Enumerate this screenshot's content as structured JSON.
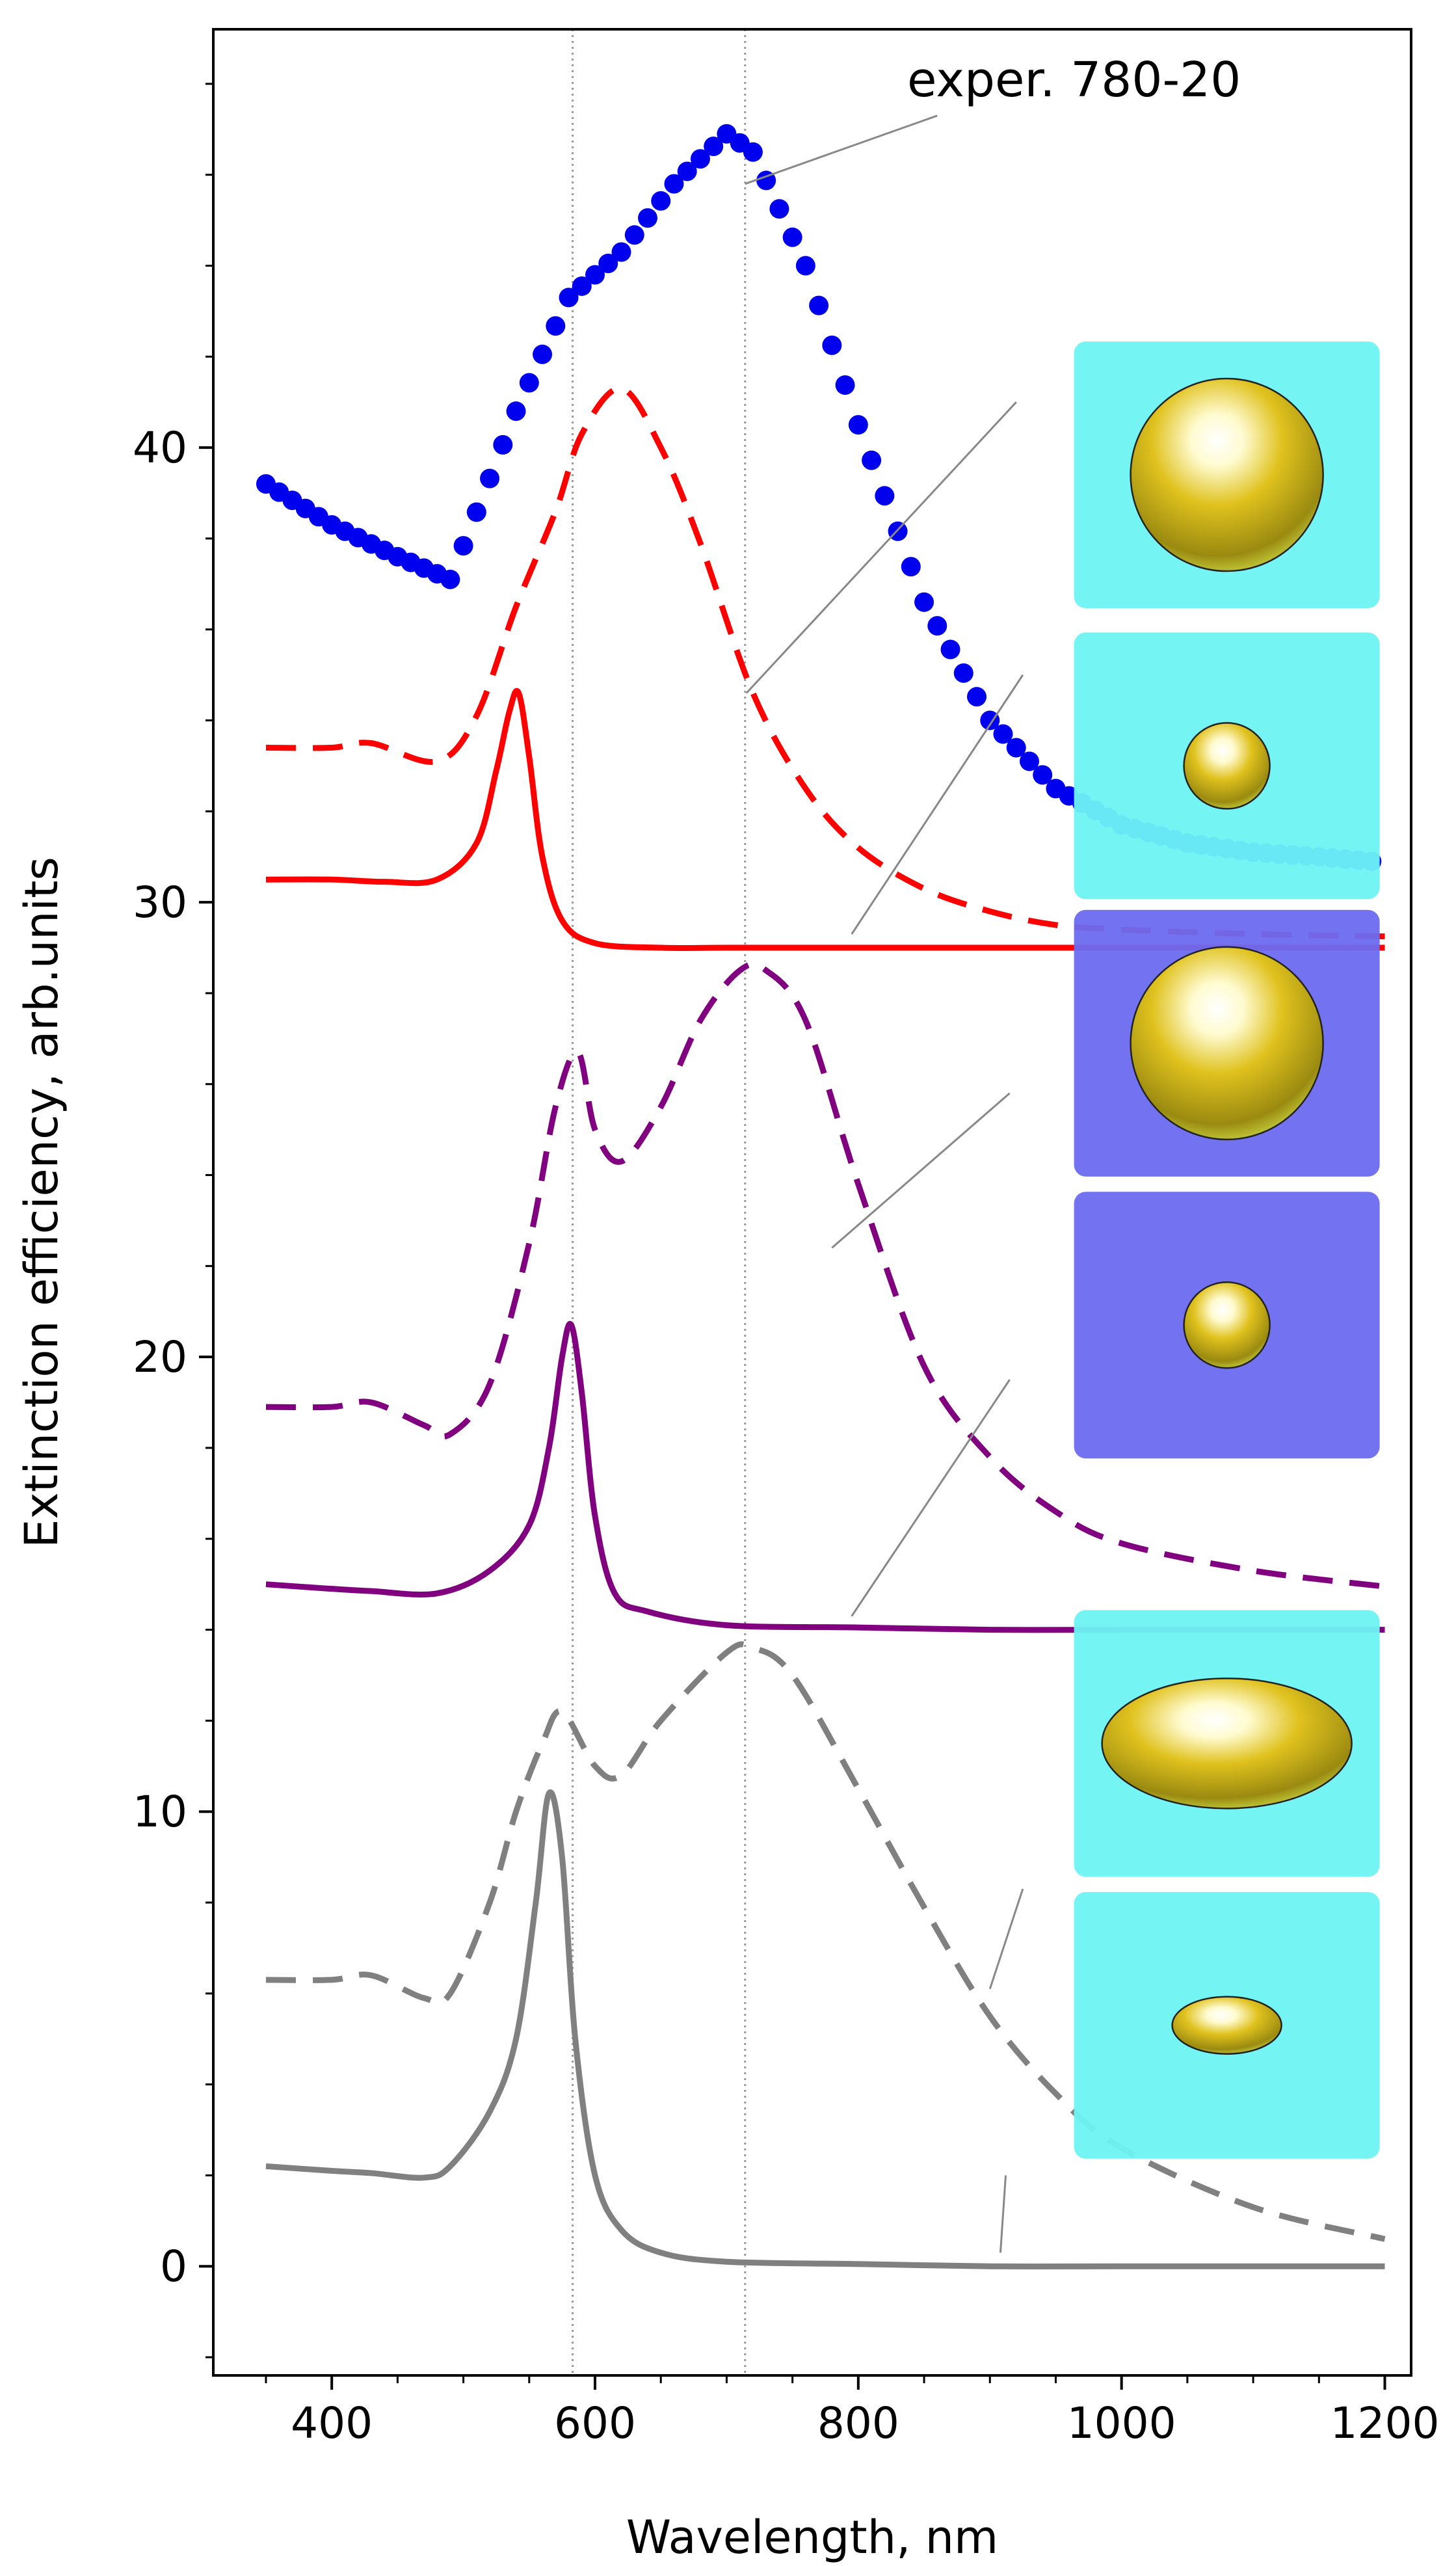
{
  "chart_data": {
    "type": "line",
    "title": "",
    "xlabel": "Wavelength, nm",
    "ylabel": "Extinction efficiency, arb.units",
    "xlim": [
      310,
      1220
    ],
    "ylim": [
      -2.4,
      49.2
    ],
    "xticks": [
      400,
      600,
      800,
      1000,
      1200
    ],
    "yticks": [
      0,
      10,
      20,
      30,
      40
    ],
    "reference_lines_x": [
      583,
      714
    ],
    "annotation": "exper. 780-20",
    "colors": {
      "experiment": "#0000ee",
      "red": "#ff0000",
      "purple": "#800080",
      "gray": "#808080",
      "cyan_box": "#6ef3f3",
      "blue_box": "#6b6bf0",
      "gold": "#d4c018"
    },
    "series": [
      {
        "name": "experiment",
        "style": "dots",
        "x": [
          350,
          400,
          450,
          490,
          540,
          580,
          620,
          660,
          700,
          720,
          760,
          800,
          850,
          900,
          950,
          1000,
          1050,
          1100,
          1150,
          1190
        ],
        "y": [
          39.2,
          38.3,
          37.6,
          37.1,
          40.8,
          43.3,
          44.3,
          45.8,
          46.9,
          46.5,
          44.0,
          40.5,
          36.6,
          34.0,
          32.5,
          31.7,
          31.3,
          31.1,
          31.0,
          30.9
        ]
      },
      {
        "name": "red-dashed",
        "style": "dashed",
        "x": [
          350,
          400,
          430,
          480,
          510,
          540,
          570,
          590,
          620,
          650,
          680,
          720,
          760,
          800,
          850,
          900,
          950,
          1000,
          1100,
          1200
        ],
        "y": [
          33.4,
          33.4,
          33.5,
          33.1,
          34.1,
          36.5,
          38.6,
          40.3,
          41.3,
          40.0,
          37.9,
          34.6,
          32.5,
          31.2,
          30.3,
          29.8,
          29.5,
          29.4,
          29.3,
          29.25
        ]
      },
      {
        "name": "red-solid",
        "style": "solid",
        "x": [
          350,
          400,
          440,
          480,
          510,
          525,
          535,
          542,
          550,
          560,
          575,
          600,
          650,
          700,
          800,
          900,
          1000,
          1100,
          1200
        ],
        "y": [
          30.5,
          30.5,
          30.45,
          30.5,
          31.3,
          32.9,
          34.2,
          34.6,
          33.2,
          31.0,
          29.6,
          29.1,
          29.0,
          29.0,
          29.0,
          29.0,
          29.0,
          29.0,
          29.0
        ]
      },
      {
        "name": "purple-dashed",
        "style": "dashed",
        "x": [
          350,
          400,
          430,
          470,
          490,
          520,
          550,
          570,
          587,
          600,
          620,
          650,
          680,
          710,
          730,
          760,
          800,
          850,
          900,
          950,
          1000,
          1100,
          1200
        ],
        "y": [
          18.9,
          18.9,
          19.0,
          18.5,
          18.3,
          19.4,
          22.5,
          25.5,
          26.7,
          25.0,
          24.3,
          25.5,
          27.4,
          28.5,
          28.5,
          27.4,
          23.8,
          19.8,
          17.8,
          16.6,
          15.9,
          15.3,
          14.95
        ]
      },
      {
        "name": "purple-solid",
        "style": "solid",
        "x": [
          350,
          400,
          430,
          480,
          520,
          550,
          565,
          575,
          582,
          590,
          600,
          615,
          640,
          700,
          800,
          900,
          1000,
          1100,
          1200
        ],
        "y": [
          15.0,
          14.9,
          14.85,
          14.8,
          15.3,
          16.3,
          18.0,
          20.0,
          20.7,
          19.2,
          16.5,
          14.8,
          14.4,
          14.1,
          14.05,
          14.0,
          14.0,
          14.0,
          14.0
        ]
      },
      {
        "name": "gray-dashed",
        "style": "dashed",
        "x": [
          350,
          400,
          430,
          470,
          490,
          520,
          540,
          560,
          575,
          600,
          620,
          650,
          700,
          720,
          750,
          800,
          850,
          900,
          950,
          1000,
          1100,
          1200
        ],
        "y": [
          6.3,
          6.3,
          6.4,
          5.9,
          6.0,
          8.0,
          10.0,
          11.5,
          12.2,
          11.0,
          10.8,
          12.0,
          13.5,
          13.6,
          13.0,
          10.5,
          7.9,
          5.5,
          3.8,
          2.6,
          1.3,
          0.6
        ]
      },
      {
        "name": "gray-solid",
        "style": "solid",
        "x": [
          350,
          400,
          430,
          470,
          490,
          520,
          540,
          555,
          565,
          575,
          585,
          600,
          620,
          650,
          700,
          800,
          900,
          1000,
          1100,
          1200
        ],
        "y": [
          2.2,
          2.1,
          2.05,
          1.95,
          2.2,
          3.4,
          5.0,
          8.0,
          10.4,
          9.0,
          5.0,
          2.0,
          0.8,
          0.3,
          0.1,
          0.05,
          0.0,
          0.0,
          0.0,
          0.0
        ]
      }
    ],
    "leader_lines": [
      {
        "series": "experiment",
        "from": [
          714,
          45.8
        ],
        "to": [
          860,
          47.3
        ]
      },
      {
        "series": "red-dashed",
        "from": [
          715,
          34.6
        ],
        "to": [
          920,
          41.0
        ]
      },
      {
        "series": "red-solid",
        "from": [
          795,
          29.3
        ],
        "to": [
          925,
          35.0
        ]
      },
      {
        "series": "purple-dashed",
        "from": [
          780,
          22.4
        ],
        "to": [
          915,
          25.8
        ]
      },
      {
        "series": "purple-solid",
        "from": [
          795,
          14.3
        ],
        "to": [
          915,
          19.5
        ]
      },
      {
        "series": "gray-dashed",
        "from": [
          900,
          6.1
        ],
        "to": [
          925,
          8.3
        ]
      },
      {
        "series": "gray-solid",
        "from": [
          908,
          0.3
        ],
        "to": [
          912,
          2.0
        ]
      }
    ],
    "insets": [
      {
        "panel": "cyan",
        "shape": "large-sphere",
        "data_x": 1080,
        "data_y": 39.4
      },
      {
        "panel": "cyan",
        "shape": "small-sphere",
        "data_x": 1080,
        "data_y": 33.0
      },
      {
        "panel": "blue",
        "shape": "large-sphere",
        "data_x": 1080,
        "data_y": 26.9
      },
      {
        "panel": "blue",
        "shape": "small-sphere",
        "data_x": 1080,
        "data_y": 20.7
      },
      {
        "panel": "cyan",
        "shape": "large-spheroid",
        "data_x": 1080,
        "data_y": 11.5
      },
      {
        "panel": "cyan",
        "shape": "small-spheroid",
        "data_x": 1080,
        "data_y": 5.3
      }
    ]
  }
}
